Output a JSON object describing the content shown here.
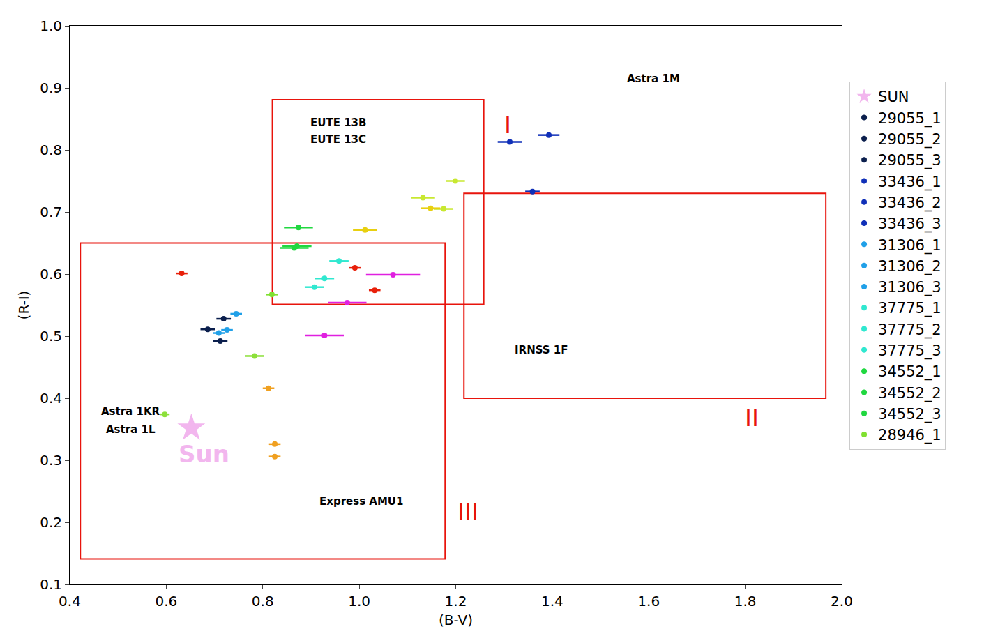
{
  "chart_data": {
    "type": "scatter",
    "x_label": "(B-V)",
    "y_label": "(R-I)",
    "xlim": [
      0.4,
      2.0
    ],
    "xticks": [
      0.4,
      0.6,
      0.8,
      {
        "value": 1.0,
        "label": "1.0"
      },
      1.2,
      1.4,
      1.6,
      1.8,
      {
        "value": 2.0,
        "label": "2.0"
      }
    ],
    "ylim": [
      0.1,
      1.0
    ],
    "yticks": [
      0.1,
      0.2,
      0.3,
      0.4,
      0.5,
      0.6,
      0.7,
      0.8,
      0.9,
      {
        "value": 1.0,
        "label": "1.0"
      }
    ],
    "grid": false,
    "legend": "right",
    "series": [
      {
        "name": "SUN",
        "color": "#f2b6ee",
        "marker": "star",
        "x": [
          0.652
        ],
        "y": [
          0.352
        ]
      },
      {
        "name": "29055_1",
        "color": "#0b1f4d",
        "x": [
          0.686
        ],
        "y": [
          0.511
        ],
        "x_err": [
          0.015
        ]
      },
      {
        "name": "29055_2",
        "color": "#0b1f4d",
        "x": [
          0.719
        ],
        "y": [
          0.528
        ],
        "x_err": [
          0.015
        ]
      },
      {
        "name": "29055_3",
        "color": "#0b1f4d",
        "x": [
          0.712
        ],
        "y": [
          0.492
        ],
        "x_err": [
          0.015
        ]
      },
      {
        "name": "33436_1",
        "color": "#1030b8",
        "x": [
          1.312
        ],
        "y": [
          0.813
        ],
        "x_err": [
          0.025
        ]
      },
      {
        "name": "33436_2",
        "color": "#1030b8",
        "x": [
          1.393
        ],
        "y": [
          0.824
        ],
        "x_err": [
          0.022
        ]
      },
      {
        "name": "33436_3",
        "color": "#1030b8",
        "x": [
          1.359
        ],
        "y": [
          0.733
        ],
        "x_err": [
          0.015
        ]
      },
      {
        "name": "31306_1",
        "color": "#20a0e8",
        "x": [
          0.745
        ],
        "y": [
          0.536
        ],
        "x_err": [
          0.012
        ]
      },
      {
        "name": "31306_2",
        "color": "#20a0e8",
        "x": [
          0.726
        ],
        "y": [
          0.51
        ],
        "x_err": [
          0.012
        ]
      },
      {
        "name": "31306_3",
        "color": "#20a0e8",
        "x": [
          0.709
        ],
        "y": [
          0.505
        ],
        "x_err": [
          0.012
        ]
      },
      {
        "name": "37775_1",
        "color": "#30e8d0",
        "x": [
          0.958
        ],
        "y": [
          0.621
        ],
        "x_err": [
          0.02
        ]
      },
      {
        "name": "37775_2",
        "color": "#30e8d0",
        "x": [
          0.928
        ],
        "y": [
          0.593
        ],
        "x_err": [
          0.02
        ]
      },
      {
        "name": "37775_3",
        "color": "#30e8d0",
        "x": [
          0.907
        ],
        "y": [
          0.579
        ],
        "x_err": [
          0.02
        ]
      },
      {
        "name": "34552_1",
        "color": "#20d840",
        "x": [
          0.874
        ],
        "y": [
          0.675
        ],
        "x_err": [
          0.03
        ]
      },
      {
        "name": "34552_2",
        "color": "#20d840",
        "x": [
          0.871
        ],
        "y": [
          0.645
        ],
        "x_err": [
          0.03
        ]
      },
      {
        "name": "34552_3",
        "color": "#20d840",
        "x": [
          0.865
        ],
        "y": [
          0.642
        ],
        "x_err": [
          0.03
        ]
      },
      {
        "name": "28946_1",
        "color": "#80e030",
        "x": [
          0.819
        ],
        "y": [
          0.567
        ],
        "x_err": [
          0.012
        ]
      },
      {
        "color": "#8ce03a",
        "x": [
          0.783,
          0.597
        ],
        "y": [
          0.468,
          0.374
        ],
        "x_err": [
          0.02,
          0.01
        ]
      },
      {
        "color": "#c8e830",
        "x": [
          1.199,
          1.132,
          1.175
        ],
        "y": [
          0.75,
          0.723,
          0.705
        ],
        "x_err": [
          0.02,
          0.025,
          0.02
        ]
      },
      {
        "color": "#e8d010",
        "x": [
          1.148,
          1.012
        ],
        "y": [
          0.706,
          0.671
        ],
        "x_err": [
          0.02,
          0.025
        ]
      },
      {
        "color": "#e8200a",
        "x": [
          0.632,
          0.991,
          1.032
        ],
        "y": [
          0.601,
          0.61,
          0.574
        ],
        "x_err": [
          0.012,
          0.012,
          0.012
        ]
      },
      {
        "color": "#e020e0",
        "x": [
          1.07,
          0.975,
          0.928
        ],
        "y": [
          0.599,
          0.554,
          0.501
        ],
        "x_err": [
          0.056,
          0.04,
          0.04
        ]
      },
      {
        "color": "#f0a020",
        "x": [
          0.812,
          0.825,
          0.825
        ],
        "y": [
          0.416,
          0.326,
          0.306
        ],
        "x_err": [
          0.012,
          0.012,
          0.012
        ]
      }
    ],
    "regions": [
      {
        "label": "I",
        "x": [
          0.82,
          1.258
        ],
        "y": [
          0.551,
          0.881
        ],
        "label_x": 1.307,
        "label_y": 0.84
      },
      {
        "label": "II",
        "x": [
          1.217,
          1.967
        ],
        "y": [
          0.4,
          0.73
        ],
        "label_x": 1.814,
        "label_y": 0.368
      },
      {
        "label": "III",
        "x": [
          0.422,
          1.178
        ],
        "y": [
          0.141,
          0.65
        ],
        "label_x": 1.226,
        "label_y": 0.217
      }
    ],
    "annotations": [
      {
        "text": "Astra 1M",
        "x": 1.61,
        "y": 0.915
      },
      {
        "text": "EUTE 13B",
        "x": 0.957,
        "y": 0.844
      },
      {
        "text": "EUTE 13C",
        "x": 0.957,
        "y": 0.817
      },
      {
        "text": "IRNSS 1F",
        "x": 1.378,
        "y": 0.478
      },
      {
        "text": "Astra 1KR",
        "x": 0.526,
        "y": 0.379
      },
      {
        "text": "Astra 1L",
        "x": 0.526,
        "y": 0.35
      },
      {
        "text": "Express AMU1",
        "x": 1.004,
        "y": 0.234
      },
      {
        "text": "Sun",
        "x": 0.678,
        "y": 0.31,
        "color": "#f2b6ee"
      }
    ]
  }
}
